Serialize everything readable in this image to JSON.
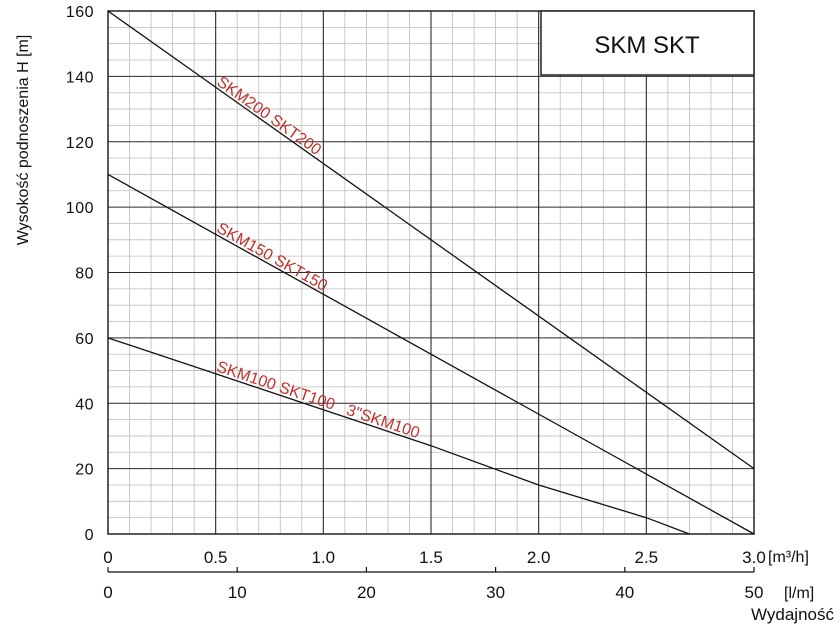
{
  "chart_data": {
    "type": "line",
    "title": "SKM SKT",
    "ylabel": "Wysokość podnoszenia H [m]",
    "xlabel": "Wydajność",
    "ylim": [
      0,
      160
    ],
    "xlim": [
      0,
      3.0
    ],
    "yticks": [
      "0",
      "20",
      "40",
      "60",
      "80",
      "100",
      "120",
      "140",
      "160"
    ],
    "yticks_values": [
      0,
      20,
      40,
      60,
      80,
      100,
      120,
      140,
      160
    ],
    "x_primary": {
      "unit": "[m³/h]",
      "ticks": [
        "0",
        "0.5",
        "1.0",
        "1.5",
        "2.0",
        "2.5",
        "3.0"
      ],
      "tick_values": [
        0,
        0.5,
        1.0,
        1.5,
        2.0,
        2.5,
        3.0
      ]
    },
    "x_secondary": {
      "unit": "[l/m]",
      "ticks": [
        "0",
        "10",
        "20",
        "30",
        "40",
        "50"
      ],
      "tick_values": [
        0,
        10,
        20,
        30,
        40,
        50
      ]
    },
    "grid": true,
    "series": [
      {
        "name": "SKM200 SKT200",
        "x": [
          0,
          3.0
        ],
        "y": [
          160,
          20
        ],
        "label_at": [
          0.5,
          136.7
        ],
        "color": "#c0302a"
      },
      {
        "name": "SKM150 SKT150",
        "x": [
          0,
          3.0
        ],
        "y": [
          110,
          0
        ],
        "label_at": [
          0.5,
          91.7
        ],
        "color": "#c0302a"
      },
      {
        "name": "SKM100 SKT100   3\"SKM100",
        "x": [
          0,
          0.5,
          1.0,
          1.5,
          2.0,
          2.5,
          2.7
        ],
        "y": [
          60,
          49,
          38,
          27,
          15,
          5,
          0
        ],
        "label_at": [
          0.5,
          49
        ],
        "color": "#c0302a"
      }
    ]
  }
}
